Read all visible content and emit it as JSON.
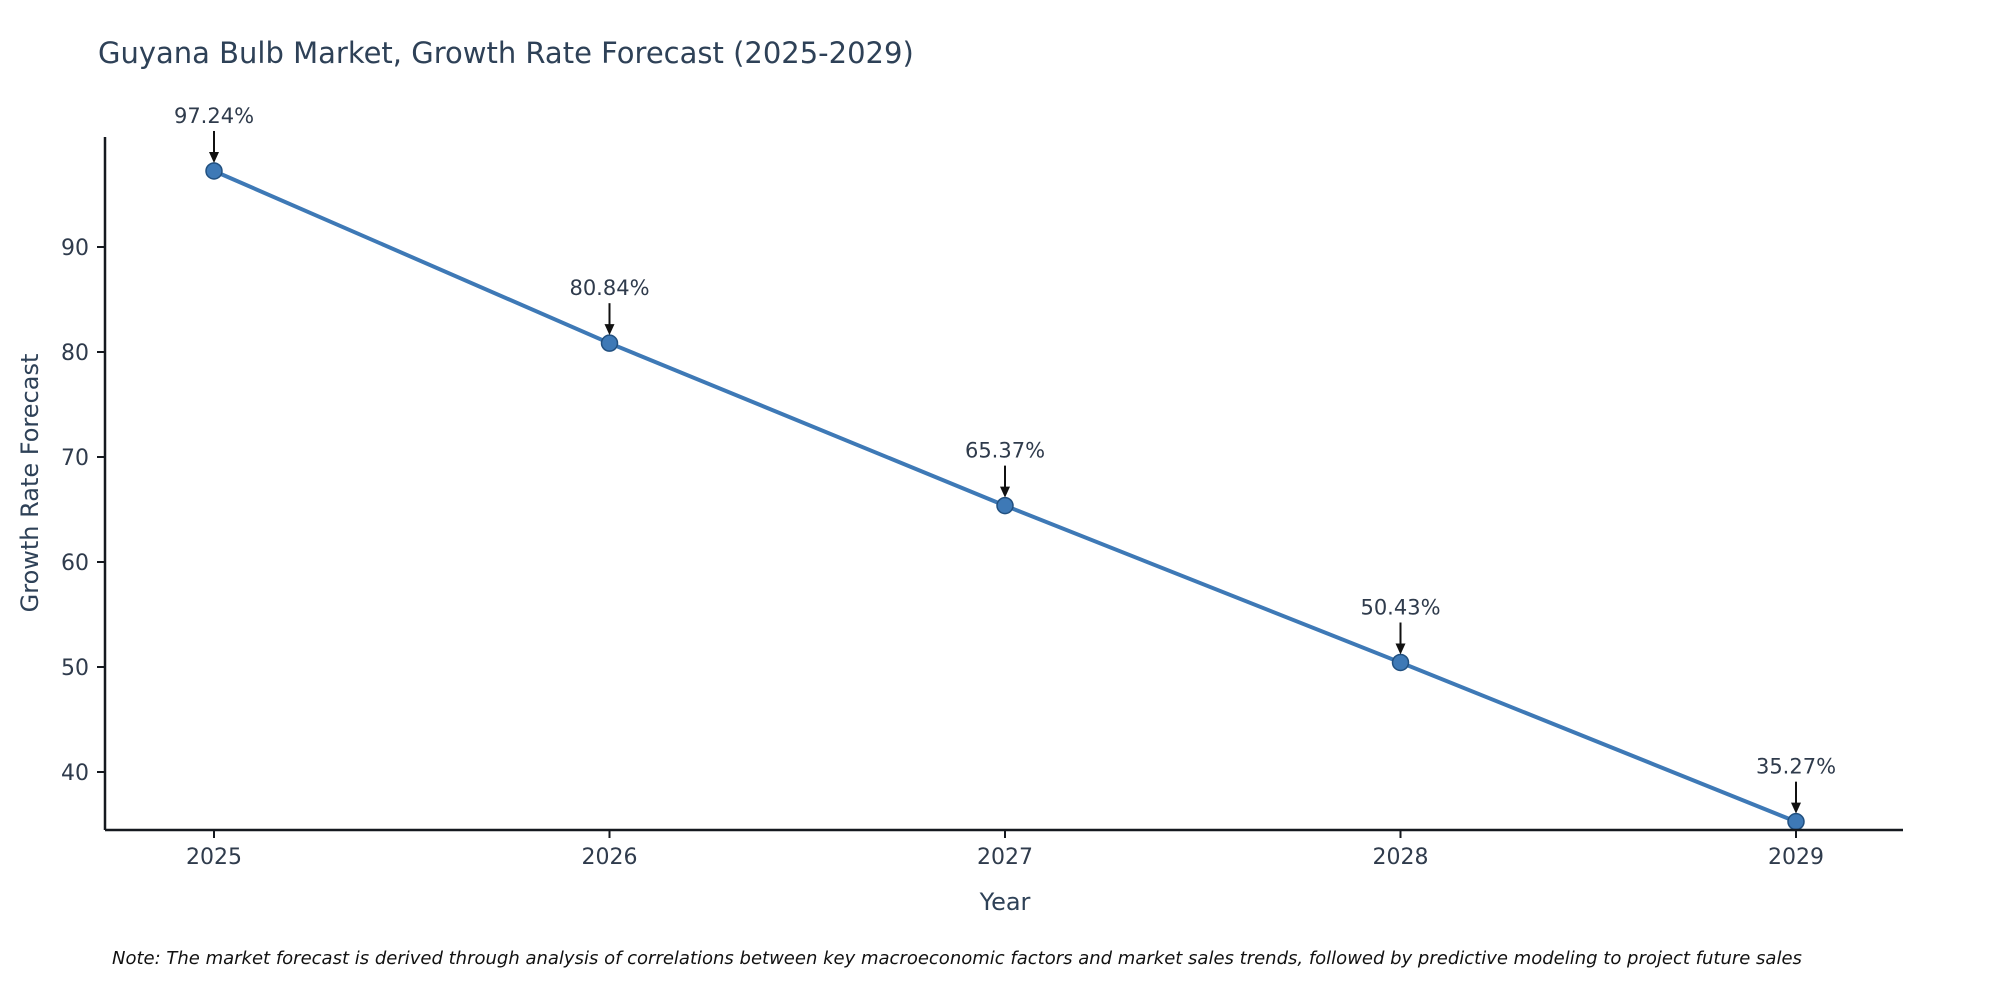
{
  "title": "Guyana Bulb Market, Growth Rate Forecast (2025-2029)",
  "note": "Note: The market forecast is derived through analysis of correlations between key macroeconomic factors and market sales trends, followed by predictive modeling to project future sales",
  "chart_data": {
    "type": "line",
    "title": "Guyana Bulb Market, Growth Rate Forecast (2025-2029)",
    "xlabel": "Year",
    "ylabel": "Growth Rate Forecast",
    "x": [
      2025,
      2026,
      2027,
      2028,
      2029
    ],
    "values": [
      97.24,
      80.84,
      65.37,
      50.43,
      35.27
    ],
    "labels": [
      "97.24%",
      "80.84%",
      "65.37%",
      "50.43%",
      "35.27%"
    ],
    "yticks": [
      40,
      50,
      60,
      70,
      80,
      90
    ],
    "ylim": [
      34.5,
      100.5
    ],
    "grid": false,
    "legend": "none",
    "line_color": "#3e79b6",
    "marker_fill": "#3e79b6",
    "marker_edge": "#215080",
    "axis_color": "#15191f",
    "text_color": "#2f3b4c",
    "annotation_arrow_color": "#111111"
  }
}
